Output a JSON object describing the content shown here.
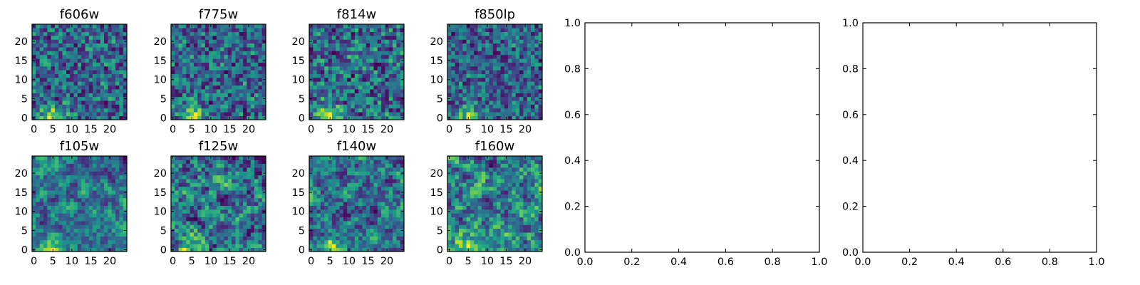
{
  "figure": {
    "background": "#ffffff",
    "frame_color": "#000000"
  },
  "chart_data": [
    {
      "type": "heatmap",
      "title": "f606w",
      "colormap": "viridis",
      "x_ticks": [
        "0",
        "5",
        "10",
        "15",
        "20"
      ],
      "y_ticks": [
        "0",
        "5",
        "10",
        "15",
        "20"
      ],
      "xlim": [
        -0.5,
        24.5
      ],
      "ylim": [
        -0.5,
        24.5
      ],
      "grid": false
    },
    {
      "type": "heatmap",
      "title": "f775w",
      "colormap": "viridis",
      "x_ticks": [
        "0",
        "5",
        "10",
        "15",
        "20"
      ],
      "y_ticks": [
        "0",
        "5",
        "10",
        "15",
        "20"
      ],
      "xlim": [
        -0.5,
        24.5
      ],
      "ylim": [
        -0.5,
        24.5
      ],
      "grid": false
    },
    {
      "type": "heatmap",
      "title": "f814w",
      "colormap": "viridis",
      "x_ticks": [
        "0",
        "5",
        "10",
        "15",
        "20"
      ],
      "y_ticks": [
        "0",
        "5",
        "10",
        "15",
        "20"
      ],
      "xlim": [
        -0.5,
        24.5
      ],
      "ylim": [
        -0.5,
        24.5
      ],
      "grid": false
    },
    {
      "type": "heatmap",
      "title": "f850lp",
      "colormap": "viridis",
      "x_ticks": [
        "0",
        "5",
        "10",
        "15",
        "20"
      ],
      "y_ticks": [
        "0",
        "5",
        "10",
        "15",
        "20"
      ],
      "xlim": [
        -0.5,
        24.5
      ],
      "ylim": [
        -0.5,
        24.5
      ],
      "grid": false
    },
    {
      "type": "heatmap",
      "title": "f105w",
      "colormap": "viridis",
      "x_ticks": [
        "0",
        "5",
        "10",
        "15",
        "20"
      ],
      "y_ticks": [
        "0",
        "5",
        "10",
        "15",
        "20"
      ],
      "xlim": [
        -0.5,
        24.5
      ],
      "ylim": [
        -0.5,
        24.5
      ],
      "grid": false
    },
    {
      "type": "heatmap",
      "title": "f125w",
      "colormap": "viridis",
      "x_ticks": [
        "0",
        "5",
        "10",
        "15",
        "20"
      ],
      "y_ticks": [
        "0",
        "5",
        "10",
        "15",
        "20"
      ],
      "xlim": [
        -0.5,
        24.5
      ],
      "ylim": [
        -0.5,
        24.5
      ],
      "grid": false
    },
    {
      "type": "heatmap",
      "title": "f140w",
      "colormap": "viridis",
      "x_ticks": [
        "0",
        "5",
        "10",
        "15",
        "20"
      ],
      "y_ticks": [
        "0",
        "5",
        "10",
        "15",
        "20"
      ],
      "xlim": [
        -0.5,
        24.5
      ],
      "ylim": [
        -0.5,
        24.5
      ],
      "grid": false
    },
    {
      "type": "heatmap",
      "title": "f160w",
      "colormap": "viridis",
      "x_ticks": [
        "0",
        "5",
        "10",
        "15",
        "20"
      ],
      "y_ticks": [
        "0",
        "5",
        "10",
        "15",
        "20"
      ],
      "xlim": [
        -0.5,
        24.5
      ],
      "ylim": [
        -0.5,
        24.5
      ],
      "grid": false
    },
    {
      "type": "scatter",
      "title": "",
      "x_ticks": [
        "0.0",
        "0.2",
        "0.4",
        "0.6",
        "0.8",
        "1.0"
      ],
      "y_ticks": [
        "0.0",
        "0.2",
        "0.4",
        "0.6",
        "0.8",
        "1.0"
      ],
      "xlim": [
        0,
        1
      ],
      "ylim": [
        0,
        1
      ],
      "grid": false,
      "series": []
    },
    {
      "type": "scatter",
      "title": "",
      "x_ticks": [
        "0.0",
        "0.2",
        "0.4",
        "0.6",
        "0.8",
        "1.0"
      ],
      "y_ticks": [
        "0.0",
        "0.2",
        "0.4",
        "0.6",
        "0.8",
        "1.0"
      ],
      "xlim": [
        0,
        1
      ],
      "ylim": [
        0,
        1
      ],
      "grid": false,
      "series": []
    }
  ]
}
